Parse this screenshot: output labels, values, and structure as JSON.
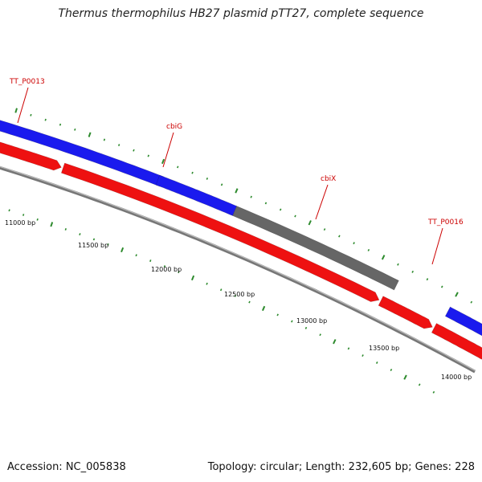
{
  "title": "Thermus thermophilus HB27 plasmid pTT27, complete sequence",
  "footer": {
    "accession": "Accession: NC_005838",
    "topology": "Topology: circular; Length: 232,605 bp; Genes: 228"
  },
  "colors": {
    "forward_gene": "#1a1aee",
    "reverse_gene": "#ee1111",
    "rna_or_other": "#666666",
    "backbone": "#777777",
    "label_line": "#cc0000",
    "tick": "#2e8b2e"
  },
  "genes": [
    {
      "name": "TT_P0013",
      "label": "TT_P0013",
      "strand": "forward",
      "type": "cds"
    },
    {
      "name": "cbiG",
      "label": "cbiG",
      "strand": "forward",
      "type": "cds"
    },
    {
      "name": "cbiX",
      "label": "cbiX",
      "strand": "forward",
      "type": "other"
    },
    {
      "name": "TT_P0016",
      "label": "TT_P0016",
      "strand": "forward",
      "type": "cds"
    }
  ],
  "reverse_features": [
    {
      "name": "reverse-feature-1"
    },
    {
      "name": "reverse-feature-2"
    },
    {
      "name": "reverse-feature-3"
    },
    {
      "name": "reverse-feature-4"
    }
  ],
  "position_labels": [
    "11000 bp",
    "11500 bp",
    "12000 bp",
    "12500 bp",
    "13000 bp",
    "13500 bp",
    "14000 bp"
  ]
}
